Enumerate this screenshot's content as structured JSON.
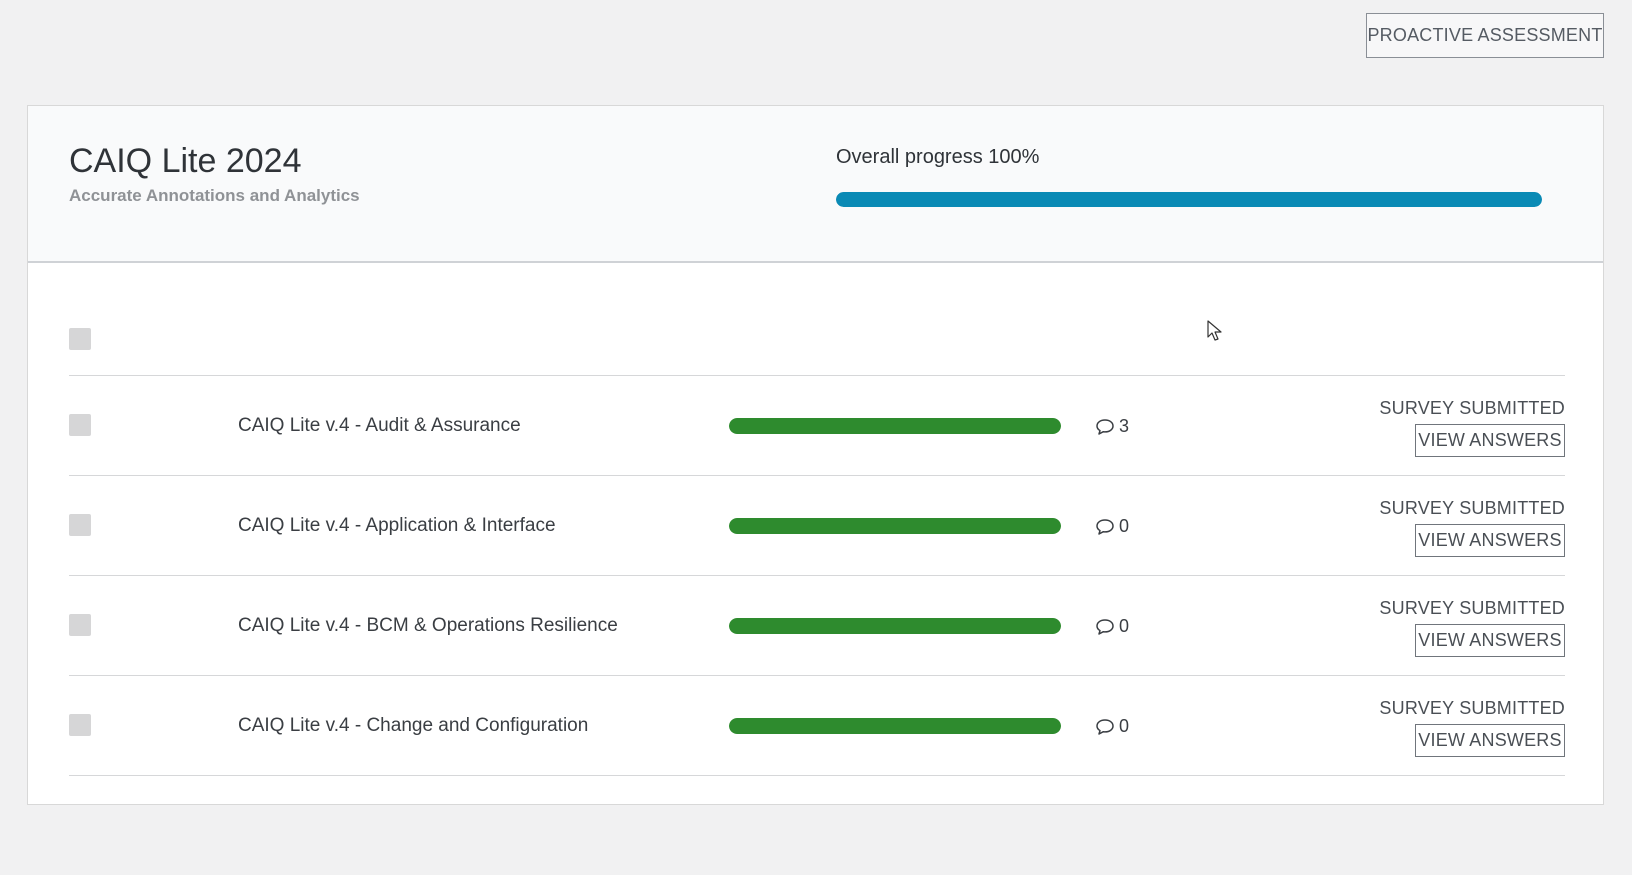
{
  "header": {
    "proactive_button_label": "PROACTIVE ASSESSMENT"
  },
  "survey": {
    "title": "CAIQ Lite 2024",
    "subtitle": "Accurate Annotations and Analytics",
    "overall_progress_label": "Overall progress 100%",
    "overall_progress": 1.0
  },
  "sections": [
    {
      "name": "CAIQ Lite v.4 - Audit & Assurance",
      "progress": 1.0,
      "comments": "3",
      "status": "SURVEY SUBMITTED",
      "button_label": "VIEW ANSWERS"
    },
    {
      "name": "CAIQ Lite v.4 - Application & Interface",
      "progress": 1.0,
      "comments": "0",
      "status": "SURVEY SUBMITTED",
      "button_label": "VIEW ANSWERS"
    },
    {
      "name": "CAIQ Lite v.4 - BCM & Operations Resilience",
      "progress": 1.0,
      "comments": "0",
      "status": "SURVEY SUBMITTED",
      "button_label": "VIEW ANSWERS"
    },
    {
      "name": "CAIQ Lite v.4 - Change and Configuration",
      "progress": 1.0,
      "comments": "0",
      "status": "SURVEY SUBMITTED",
      "button_label": "VIEW ANSWERS"
    }
  ],
  "colors": {
    "overall_progress": "#0a8ab5",
    "section_progress": "#2e8b2e"
  },
  "icons": {
    "comment": "speech-bubble-icon",
    "cursor": "mouse-pointer-icon"
  }
}
